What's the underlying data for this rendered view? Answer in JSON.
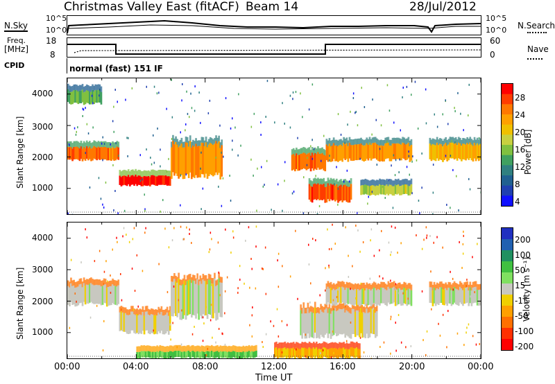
{
  "header": {
    "title": "Christmas Valley East (fitACF)",
    "beam": "Beam 14",
    "date": "28/Jul/2012"
  },
  "noise_panel": {
    "left_label": "N.Sky",
    "right_label": "N.Search",
    "left_ticks": [
      "10^5",
      "10^0"
    ],
    "right_ticks": [
      "10^5",
      "10^0"
    ]
  },
  "freq_panel": {
    "left_label_1": "Freq.",
    "left_label_2": "[MHz]",
    "right_label": "Nave",
    "left_ticks": [
      "18",
      "8"
    ],
    "right_ticks": [
      "60",
      "0"
    ]
  },
  "cpid": {
    "label": "CPID",
    "value": "normal (fast) 151 IF"
  },
  "power_panel": {
    "ylabel": "Slant Range [km]",
    "yticks": [
      "4000",
      "3000",
      "2000",
      "1000"
    ],
    "colorbar_label": "Power [dB]",
    "colorbar_ticks": [
      "28",
      "24",
      "20",
      "16",
      "12",
      "8",
      "4"
    ],
    "colorbar_colors": [
      "#ff0000",
      "#ff3c00",
      "#ff7800",
      "#ffa000",
      "#f0c000",
      "#c8d040",
      "#80c040",
      "#40a060",
      "#308080",
      "#206090",
      "#2040b0",
      "#1010ff"
    ]
  },
  "velocity_panel": {
    "ylabel": "Slant Range [km]",
    "yticks": [
      "4000",
      "3000",
      "2000",
      "1000"
    ],
    "colorbar_label": "Velocity [m s⁻¹]",
    "colorbar_ticks": [
      "200",
      "100",
      "50",
      "15",
      "-15",
      "-50",
      "-100",
      "-200"
    ],
    "colorbar_colors": [
      "#2030c0",
      "#2060b0",
      "#209060",
      "#40c040",
      "#80e060",
      "#c8c8c0",
      "#f0d000",
      "#ffa000",
      "#ff7000",
      "#ff3000",
      "#ff0000"
    ]
  },
  "xaxis": {
    "ticks": [
      "00:00",
      "04:00",
      "08:00",
      "12:00",
      "16:00",
      "20:00",
      "00:00"
    ],
    "label": "Time UT"
  },
  "chart_data": {
    "type": "heatmap",
    "title": "Christmas Valley East (fitACF)",
    "subtitle": "Beam 14, 28/Jul/2012",
    "xlabel": "Time UT",
    "ylabel": "Slant Range [km]",
    "x_ticks": [
      "00:00",
      "04:00",
      "08:00",
      "12:00",
      "16:00",
      "20:00",
      "00:00"
    ],
    "ylim": [
      180,
      4500
    ],
    "panels": [
      {
        "name": "Power",
        "units": "dB",
        "scale": [
          0,
          30
        ],
        "echo_bands": [
          {
            "t": [
              0,
              3
            ],
            "range": [
              1900,
              2300
            ],
            "value": 24
          },
          {
            "t": [
              3,
              6
            ],
            "range": [
              1100,
              1400
            ],
            "value": 28
          },
          {
            "t": [
              6,
              9
            ],
            "range": [
              1400,
              2400
            ],
            "value": 22
          },
          {
            "t": [
              0,
              2
            ],
            "range": [
              3700,
              4100
            ],
            "value": 12
          },
          {
            "t": [
              13,
              15
            ],
            "range": [
              1600,
              2100
            ],
            "value": 24
          },
          {
            "t": [
              14,
              16.5
            ],
            "range": [
              600,
              1100
            ],
            "value": 26
          },
          {
            "t": [
              15,
              20
            ],
            "range": [
              1900,
              2400
            ],
            "value": 22
          },
          {
            "t": [
              17,
              20
            ],
            "range": [
              800,
              1100
            ],
            "value": 16
          },
          {
            "t": [
              21,
              24
            ],
            "range": [
              1900,
              2400
            ],
            "value": 20
          }
        ]
      },
      {
        "name": "Velocity",
        "units": "m s-1",
        "scale": [
          -200,
          200
        ],
        "echo_bands": [
          {
            "t": [
              0,
              3
            ],
            "range": [
              1900,
              2500
            ],
            "value": 0
          },
          {
            "t": [
              3,
              6
            ],
            "range": [
              1000,
              1600
            ],
            "value": 0
          },
          {
            "t": [
              6,
              9
            ],
            "range": [
              1500,
              2600
            ],
            "value": 0
          },
          {
            "t": [
              4,
              11
            ],
            "range": [
              200,
              400
            ],
            "value": 60
          },
          {
            "t": [
              12,
              17
            ],
            "range": [
              200,
              500
            ],
            "value": -60
          },
          {
            "t": [
              13.5,
              18
            ],
            "range": [
              900,
              1700
            ],
            "value": 0
          },
          {
            "t": [
              15,
              20
            ],
            "range": [
              1900,
              2400
            ],
            "value": 0
          },
          {
            "t": [
              21,
              24
            ],
            "range": [
              1900,
              2400
            ],
            "value": 0
          }
        ]
      }
    ]
  }
}
